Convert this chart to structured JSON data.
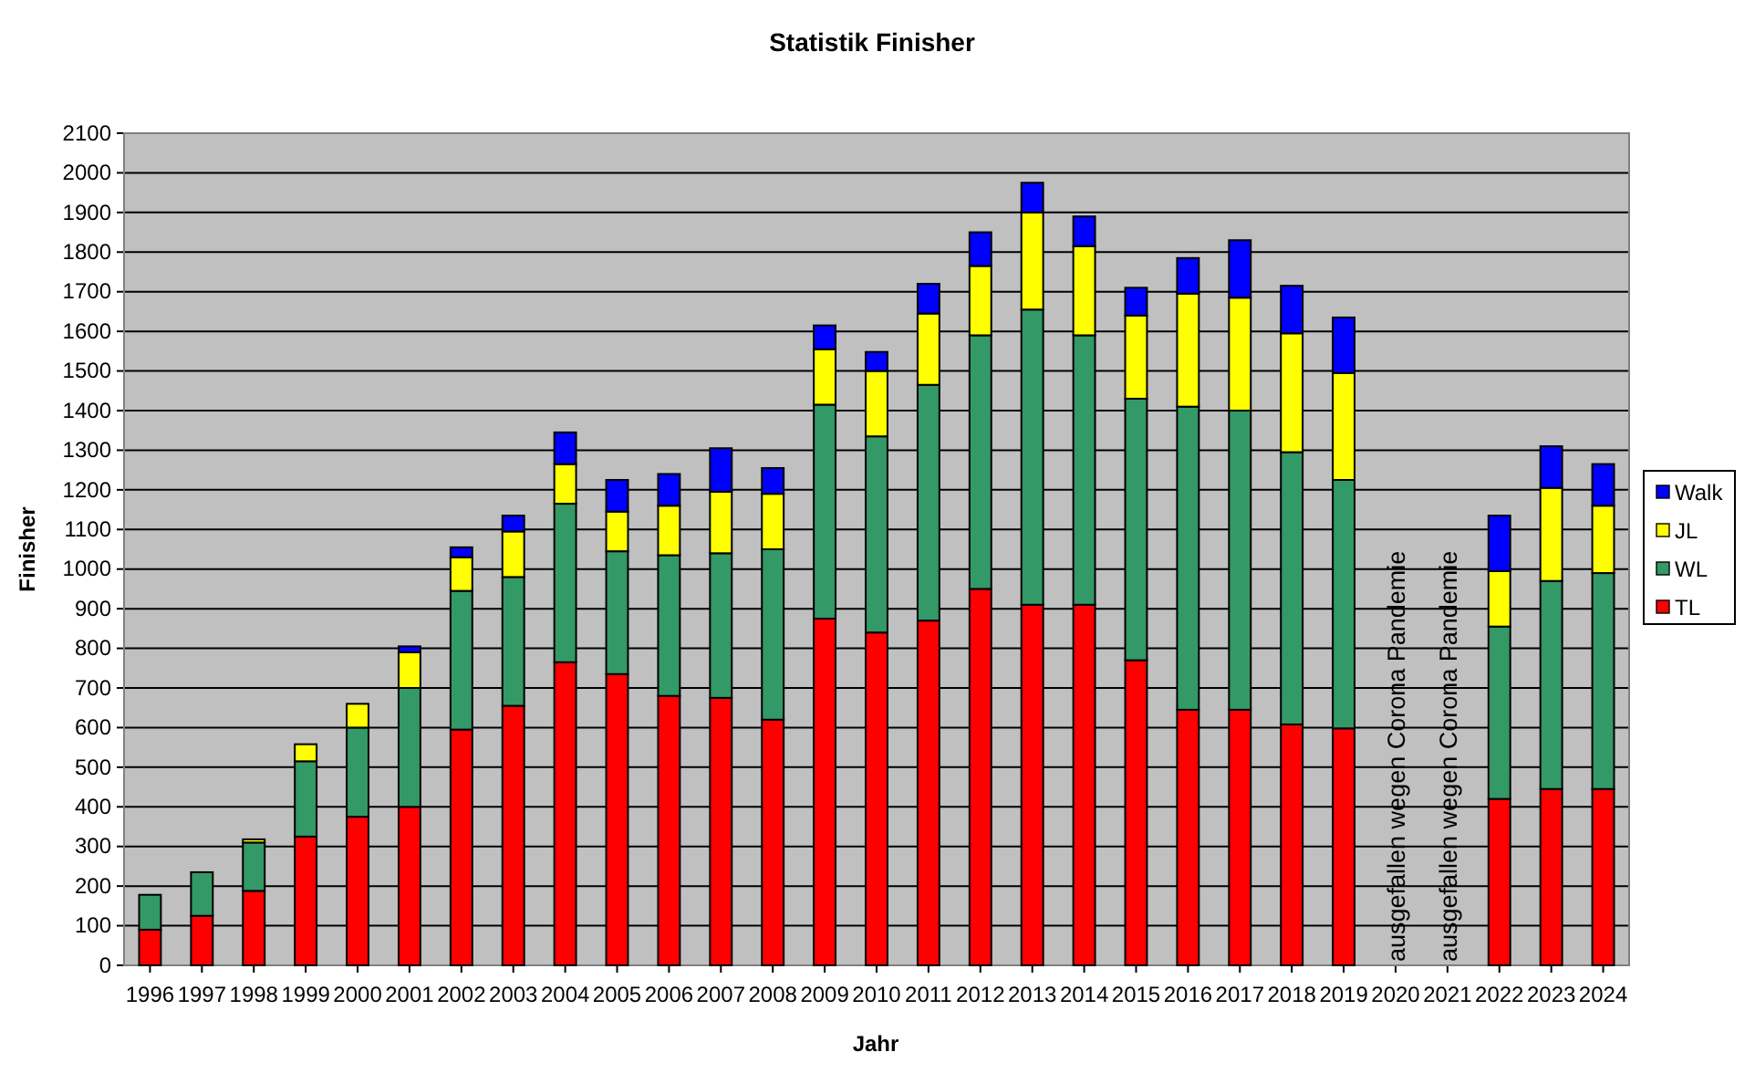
{
  "chart_data": {
    "type": "bar",
    "title": "Statistik Finisher",
    "xlabel": "Jahr",
    "ylabel": "Finisher",
    "stacked": true,
    "categories": [
      "1996",
      "1997",
      "1998",
      "1999",
      "2000",
      "2001",
      "2002",
      "2003",
      "2004",
      "2005",
      "2006",
      "2007",
      "2008",
      "2009",
      "2010",
      "2011",
      "2012",
      "2013",
      "2014",
      "2015",
      "2016",
      "2017",
      "2018",
      "2019",
      "2020",
      "2021",
      "2022",
      "2023",
      "2024"
    ],
    "series": [
      {
        "name": "TL",
        "color": "#ff0000",
        "values": [
          90,
          125,
          188,
          325,
          375,
          400,
          595,
          655,
          765,
          735,
          680,
          675,
          620,
          875,
          840,
          870,
          950,
          910,
          910,
          770,
          645,
          645,
          608,
          598,
          null,
          null,
          420,
          445,
          445
        ]
      },
      {
        "name": "WL",
        "color": "#339966",
        "values": [
          88,
          110,
          122,
          190,
          225,
          300,
          350,
          325,
          400,
          310,
          355,
          365,
          430,
          540,
          495,
          595,
          640,
          745,
          680,
          660,
          765,
          755,
          687,
          627,
          null,
          null,
          435,
          525,
          545
        ]
      },
      {
        "name": "JL",
        "color": "#ffff00",
        "values": [
          0,
          0,
          8,
          43,
          60,
          90,
          85,
          115,
          100,
          100,
          125,
          155,
          140,
          140,
          165,
          180,
          175,
          245,
          225,
          210,
          285,
          285,
          300,
          270,
          null,
          null,
          140,
          235,
          170
        ]
      },
      {
        "name": "Walk",
        "color": "#0000ff",
        "values": [
          0,
          0,
          0,
          0,
          0,
          15,
          25,
          40,
          80,
          80,
          80,
          110,
          65,
          60,
          48,
          75,
          85,
          75,
          75,
          70,
          90,
          145,
          120,
          140,
          null,
          null,
          140,
          105,
          105
        ]
      }
    ],
    "ylim": [
      0,
      2100
    ],
    "yticks": [
      0,
      100,
      200,
      300,
      400,
      500,
      600,
      700,
      800,
      900,
      1000,
      1100,
      1200,
      1300,
      1400,
      1500,
      1600,
      1700,
      1800,
      1900,
      2000,
      2100
    ],
    "grid": "y",
    "legend": "right",
    "annotations": [
      "ausgefallen wegen Corona Pandemie",
      "ausgefallen wegen Corona Pandemie"
    ]
  }
}
